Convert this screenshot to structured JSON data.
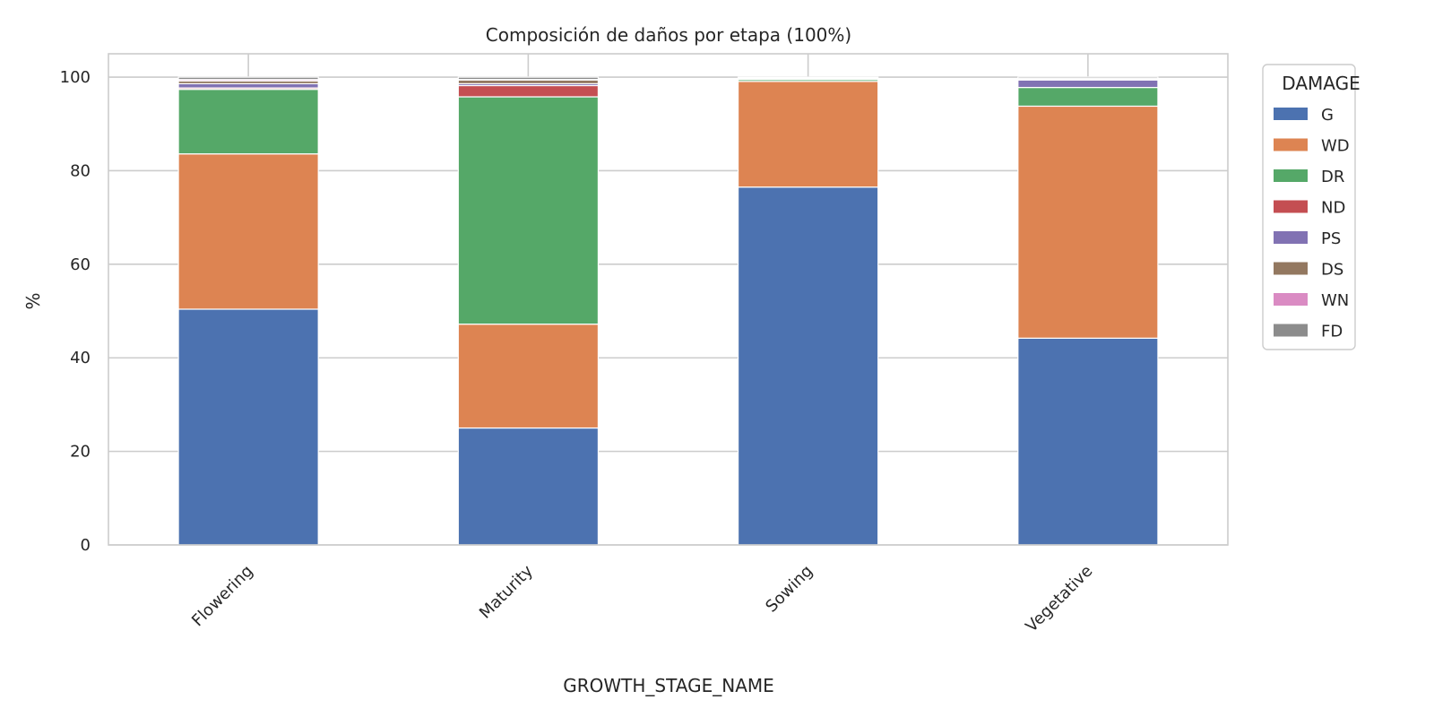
{
  "chart_data": {
    "type": "bar",
    "stacked": true,
    "title": "Composición de daños por etapa (100%)",
    "xlabel": "GROWTH_STAGE_NAME",
    "ylabel": "%",
    "ylim": [
      0,
      105
    ],
    "yticks": [
      0,
      20,
      40,
      60,
      80,
      100
    ],
    "grid": true,
    "legend_title": "DAMAGE",
    "legend_position": "outside-top-right",
    "categories": [
      "Flowering",
      "Maturity",
      "Sowing",
      "Vegetative"
    ],
    "series": [
      {
        "name": "G",
        "color": "#4c72b0",
        "values": [
          50.4,
          25.0,
          76.5,
          44.2
        ]
      },
      {
        "name": "WD",
        "color": "#dd8452",
        "values": [
          33.2,
          22.2,
          22.6,
          49.6
        ]
      },
      {
        "name": "DR",
        "color": "#55a868",
        "values": [
          13.8,
          48.6,
          0.4,
          4.0
        ]
      },
      {
        "name": "ND",
        "color": "#c44e52",
        "values": [
          0.3,
          2.4,
          0.0,
          0.0
        ]
      },
      {
        "name": "PS",
        "color": "#8172b3",
        "values": [
          0.9,
          0.4,
          0.1,
          1.6
        ]
      },
      {
        "name": "DS",
        "color": "#937860",
        "values": [
          0.6,
          0.8,
          0.1,
          0.2
        ]
      },
      {
        "name": "WN",
        "color": "#da8bc3",
        "values": [
          0.3,
          0.1,
          0.1,
          0.1
        ]
      },
      {
        "name": "FD",
        "color": "#8c8c8c",
        "values": [
          0.5,
          0.5,
          0.2,
          0.3
        ]
      }
    ]
  }
}
